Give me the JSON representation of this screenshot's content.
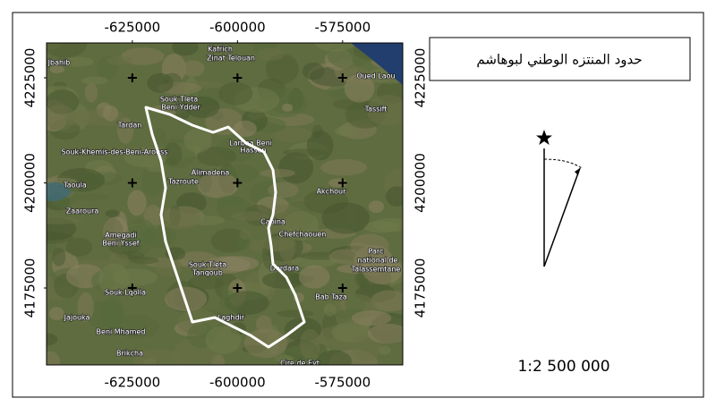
{
  "map": {
    "xticks": [
      -625000,
      -600000,
      -575000
    ],
    "yticks": [
      4225000,
      4200000,
      4175000
    ],
    "xlim": [
      -645400,
      -560700
    ],
    "ylim": [
      4156700,
      4233300
    ],
    "legend_title": "حدود المنتزه الوطني لبوهاشم",
    "scale": "1:2 500 000",
    "place_labels": [
      "Kafrich",
      "Zinat Telouan",
      "Souk Tleta",
      "Beni Ydder",
      "Tardan",
      "Larbaa Beni",
      "Hassen",
      "Souk-Khemis-des-Beni-Arouss",
      "Alimadena",
      "Tazroute",
      "Taoula",
      "Zaaroura",
      "Cabina",
      "Chefchaouen",
      "Akchour",
      "Oued Laou",
      "Tassift",
      "Amegadi",
      "Beni Yssef",
      "Souk Tleta",
      "Tanqoub",
      "Souk Lqolla",
      "Derdara",
      "Parc",
      "national de",
      "Talassemtane",
      "Bab Taza",
      "Laghdir",
      "Jajouka",
      "Beni Mhamed",
      "Brikcha",
      "Cire de Eyt",
      "Jbahib"
    ]
  }
}
